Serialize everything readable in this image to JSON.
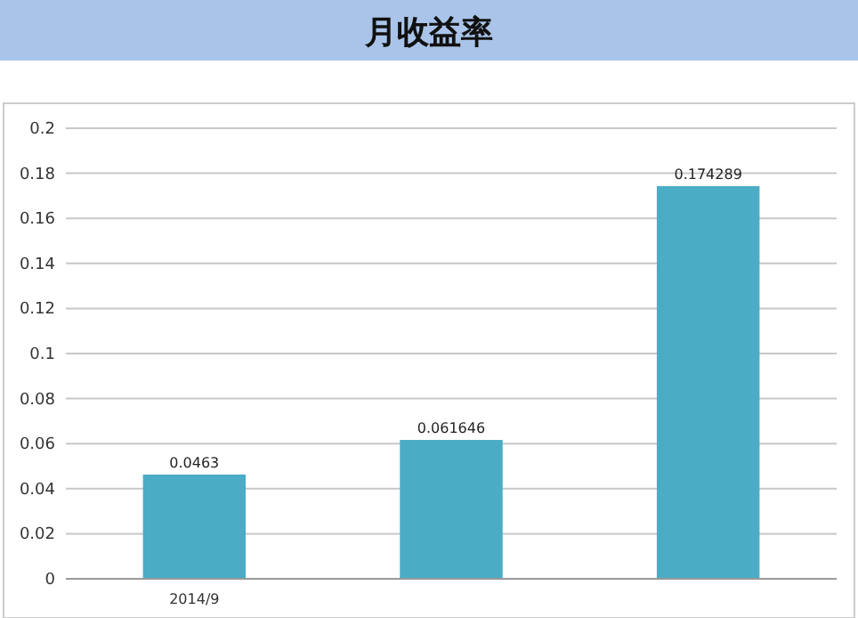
{
  "chart_data": {
    "type": "bar",
    "title": "月收益率",
    "categories": [
      "2014/9",
      null,
      null
    ],
    "values": [
      0.0463,
      0.061646,
      0.174289
    ],
    "color": "#4bacc6",
    "ylim": [
      0,
      0.2
    ],
    "yticks": [
      0,
      0.02,
      0.04,
      0.06,
      0.08,
      0.1,
      0.12,
      0.14,
      0.16,
      0.18,
      0.2
    ],
    "grid": "y",
    "data_labels": true
  }
}
